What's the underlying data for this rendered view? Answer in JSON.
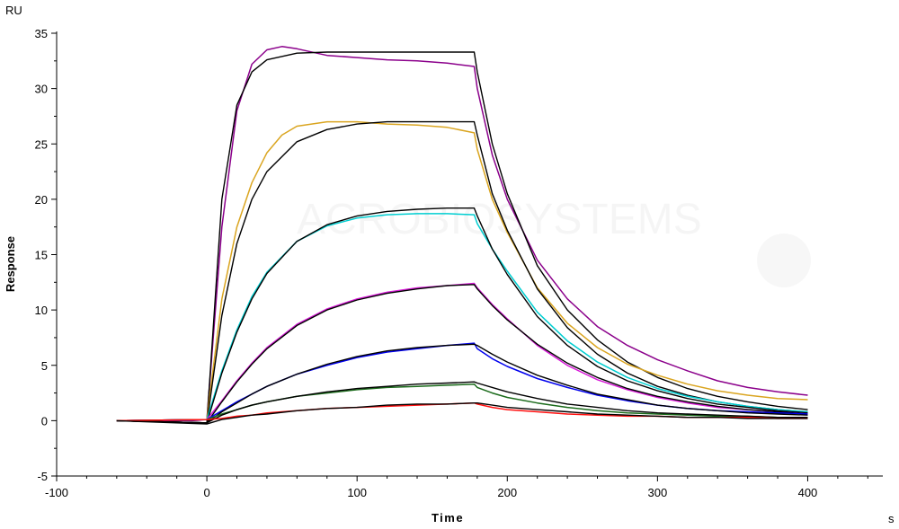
{
  "chart_data": {
    "type": "line",
    "title": "",
    "xlabel": "Time",
    "ylabel": "Response",
    "x_unit": "s",
    "y_unit": "RU",
    "xlim": [
      -100,
      450
    ],
    "ylim": [
      -5,
      35
    ],
    "x_ticks": [
      -100,
      0,
      100,
      200,
      300,
      400
    ],
    "y_ticks": [
      -5,
      0,
      5,
      10,
      15,
      20,
      25,
      30,
      35
    ],
    "grid": false,
    "legend": "none",
    "series": [
      {
        "color": "#8B008B",
        "x": [
          -60,
          -10,
          0,
          10,
          20,
          30,
          40,
          50,
          60,
          80,
          100,
          120,
          140,
          160,
          178,
          180,
          190,
          200,
          220,
          240,
          260,
          280,
          300,
          320,
          340,
          360,
          380,
          400
        ],
        "y": [
          0,
          0,
          0.1,
          17.5,
          28,
          32.2,
          33.5,
          33.8,
          33.6,
          33.0,
          32.8,
          32.6,
          32.5,
          32.3,
          32.0,
          30.0,
          24.0,
          20.0,
          14.5,
          11.0,
          8.5,
          6.8,
          5.5,
          4.5,
          3.6,
          3.0,
          2.6,
          2.3
        ]
      },
      {
        "color": "#000000",
        "x": [
          -60,
          0,
          10,
          20,
          30,
          40,
          60,
          80,
          100,
          120,
          140,
          160,
          178,
          180,
          190,
          200,
          220,
          240,
          260,
          280,
          300,
          320,
          340,
          360,
          380,
          400
        ],
        "y": [
          0,
          -0.2,
          20.0,
          28.5,
          31.5,
          32.6,
          33.2,
          33.3,
          33.3,
          33.3,
          33.3,
          33.3,
          33.3,
          31.5,
          25.0,
          20.5,
          14.0,
          10.0,
          7.3,
          5.3,
          3.9,
          2.9,
          2.2,
          1.7,
          1.3,
          1.0
        ]
      },
      {
        "color": "#DAA520",
        "x": [
          -60,
          0,
          10,
          20,
          30,
          40,
          50,
          60,
          80,
          100,
          120,
          140,
          160,
          178,
          180,
          190,
          200,
          220,
          240,
          260,
          280,
          300,
          320,
          340,
          360,
          380,
          400
        ],
        "y": [
          0,
          0.1,
          11.0,
          17.5,
          21.5,
          24.2,
          25.8,
          26.6,
          27.0,
          27.0,
          26.8,
          26.7,
          26.5,
          26.0,
          24.5,
          20.0,
          17.0,
          12.0,
          8.8,
          6.6,
          5.1,
          4.1,
          3.3,
          2.7,
          2.3,
          2.0,
          1.9
        ]
      },
      {
        "color": "#000000",
        "x": [
          -60,
          0,
          10,
          20,
          30,
          40,
          60,
          80,
          100,
          120,
          140,
          160,
          178,
          180,
          190,
          200,
          220,
          240,
          260,
          280,
          300,
          320,
          340,
          360,
          380,
          400
        ],
        "y": [
          0,
          -0.2,
          9.5,
          16.0,
          20.0,
          22.5,
          25.2,
          26.3,
          26.8,
          27.0,
          27.0,
          27.0,
          27.0,
          25.8,
          20.5,
          17.2,
          11.9,
          8.4,
          6.0,
          4.3,
          3.1,
          2.3,
          1.7,
          1.3,
          1.0,
          0.8
        ]
      },
      {
        "color": "#00CED1",
        "x": [
          -60,
          0,
          10,
          20,
          30,
          40,
          60,
          80,
          100,
          120,
          140,
          160,
          178,
          180,
          190,
          200,
          220,
          240,
          260,
          280,
          300,
          320,
          340,
          360,
          380,
          400
        ],
        "y": [
          0,
          0.1,
          4.5,
          8.2,
          11.2,
          13.4,
          16.2,
          17.6,
          18.3,
          18.6,
          18.7,
          18.7,
          18.6,
          17.8,
          15.5,
          13.5,
          9.8,
          7.2,
          5.3,
          3.9,
          2.9,
          2.2,
          1.7,
          1.3,
          1.0,
          0.8
        ]
      },
      {
        "color": "#000000",
        "x": [
          -60,
          0,
          10,
          20,
          30,
          40,
          60,
          80,
          100,
          120,
          140,
          160,
          178,
          180,
          190,
          200,
          220,
          240,
          260,
          280,
          300,
          320,
          340,
          360,
          380,
          400
        ],
        "y": [
          0,
          -0.2,
          4.3,
          8.0,
          11.0,
          13.3,
          16.2,
          17.7,
          18.5,
          18.9,
          19.1,
          19.2,
          19.2,
          18.5,
          15.5,
          13.2,
          9.4,
          6.8,
          4.9,
          3.6,
          2.7,
          2.0,
          1.5,
          1.2,
          0.9,
          0.7
        ]
      },
      {
        "color": "#D81BD8",
        "x": [
          -60,
          0,
          10,
          20,
          30,
          40,
          60,
          80,
          100,
          120,
          140,
          160,
          178,
          180,
          190,
          200,
          220,
          240,
          260,
          280,
          300,
          320,
          340,
          360,
          380,
          400
        ],
        "y": [
          0,
          0.1,
          1.8,
          3.6,
          5.2,
          6.6,
          8.7,
          10.1,
          11.0,
          11.6,
          12.0,
          12.2,
          12.4,
          12.0,
          10.5,
          9.2,
          6.8,
          5.0,
          3.7,
          2.8,
          2.1,
          1.6,
          1.2,
          1.0,
          0.8,
          0.6
        ]
      },
      {
        "color": "#000000",
        "x": [
          -60,
          0,
          10,
          20,
          30,
          40,
          60,
          80,
          100,
          120,
          140,
          160,
          178,
          180,
          190,
          200,
          220,
          240,
          260,
          280,
          300,
          320,
          340,
          360,
          380,
          400
        ],
        "y": [
          0,
          -0.2,
          1.7,
          3.5,
          5.1,
          6.5,
          8.6,
          10.0,
          10.9,
          11.5,
          11.9,
          12.2,
          12.3,
          11.9,
          10.4,
          9.1,
          6.9,
          5.2,
          3.9,
          2.9,
          2.2,
          1.7,
          1.3,
          1.0,
          0.8,
          0.6
        ]
      },
      {
        "color": "#0000EE",
        "x": [
          -60,
          0,
          10,
          20,
          30,
          40,
          60,
          80,
          100,
          120,
          140,
          160,
          178,
          180,
          190,
          200,
          220,
          240,
          260,
          280,
          300,
          320,
          340,
          360,
          380,
          400
        ],
        "y": [
          0,
          0.1,
          0.9,
          1.7,
          2.4,
          3.1,
          4.2,
          5.0,
          5.7,
          6.2,
          6.5,
          6.8,
          7.0,
          6.5,
          5.6,
          4.9,
          3.8,
          3.0,
          2.3,
          1.8,
          1.4,
          1.1,
          0.9,
          0.8,
          0.7,
          0.6
        ]
      },
      {
        "color": "#000000",
        "x": [
          -60,
          0,
          10,
          20,
          30,
          40,
          60,
          80,
          100,
          120,
          140,
          160,
          178,
          180,
          190,
          200,
          220,
          240,
          260,
          280,
          300,
          320,
          340,
          360,
          380,
          400
        ],
        "y": [
          0,
          -0.2,
          0.8,
          1.6,
          2.4,
          3.1,
          4.2,
          5.1,
          5.8,
          6.3,
          6.6,
          6.8,
          6.9,
          6.8,
          6.0,
          5.3,
          4.1,
          3.2,
          2.4,
          1.9,
          1.4,
          1.1,
          0.9,
          0.7,
          0.6,
          0.5
        ]
      },
      {
        "color": "#1B6B1B",
        "x": [
          -60,
          0,
          10,
          20,
          30,
          40,
          60,
          80,
          100,
          120,
          140,
          160,
          178,
          180,
          190,
          200,
          220,
          240,
          260,
          280,
          300,
          320,
          340,
          360,
          380,
          400
        ],
        "y": [
          0,
          0.1,
          0.6,
          1.0,
          1.4,
          1.7,
          2.2,
          2.5,
          2.8,
          3.0,
          3.1,
          3.2,
          3.3,
          3.0,
          2.5,
          2.1,
          1.6,
          1.2,
          0.9,
          0.7,
          0.6,
          0.5,
          0.4,
          0.4,
          0.3,
          0.3
        ]
      },
      {
        "color": "#000000",
        "x": [
          -60,
          0,
          10,
          20,
          30,
          40,
          60,
          80,
          100,
          120,
          140,
          160,
          178,
          180,
          190,
          200,
          220,
          240,
          260,
          280,
          300,
          320,
          340,
          360,
          380,
          400
        ],
        "y": [
          0,
          -0.2,
          0.5,
          1.0,
          1.4,
          1.7,
          2.2,
          2.6,
          2.9,
          3.1,
          3.3,
          3.4,
          3.5,
          3.4,
          3.0,
          2.6,
          2.0,
          1.5,
          1.2,
          0.9,
          0.7,
          0.6,
          0.5,
          0.4,
          0.3,
          0.3
        ]
      },
      {
        "color": "#FF1010",
        "x": [
          -60,
          0,
          10,
          20,
          30,
          40,
          60,
          80,
          100,
          120,
          140,
          160,
          178,
          180,
          190,
          200,
          220,
          240,
          260,
          280,
          300,
          320,
          340,
          360,
          380,
          400
        ],
        "y": [
          0,
          0.1,
          0.2,
          0.4,
          0.5,
          0.7,
          0.9,
          1.1,
          1.2,
          1.3,
          1.4,
          1.5,
          1.6,
          1.5,
          1.2,
          1.0,
          0.8,
          0.6,
          0.5,
          0.4,
          0.4,
          0.3,
          0.3,
          0.3,
          0.2,
          0.2
        ]
      },
      {
        "color": "#000000",
        "x": [
          -60,
          0,
          10,
          20,
          30,
          40,
          60,
          80,
          100,
          120,
          140,
          160,
          178,
          180,
          190,
          200,
          220,
          240,
          260,
          280,
          300,
          320,
          340,
          360,
          380,
          400
        ],
        "y": [
          0,
          -0.3,
          0.1,
          0.3,
          0.5,
          0.6,
          0.9,
          1.1,
          1.2,
          1.4,
          1.5,
          1.5,
          1.6,
          1.6,
          1.4,
          1.2,
          1.0,
          0.8,
          0.6,
          0.5,
          0.4,
          0.3,
          0.3,
          0.2,
          0.2,
          0.2
        ]
      }
    ]
  }
}
